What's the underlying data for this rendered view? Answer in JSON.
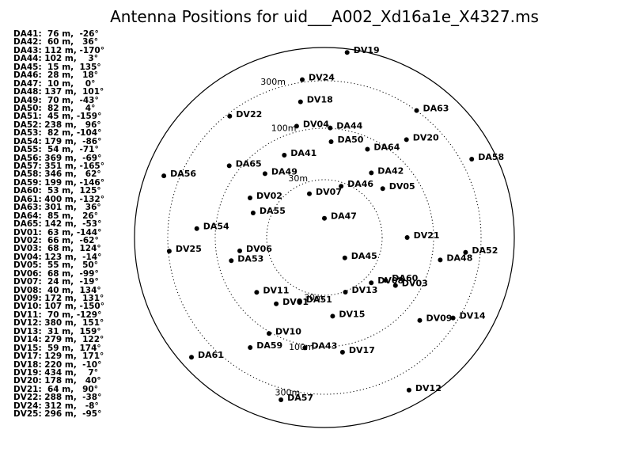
{
  "chart_data": {
    "type": "scatter",
    "projection": "polar",
    "title": "Antenna Positions for uid___A002_Xd16a1e_X4327.ms",
    "rings": [
      {
        "radius_m": 30,
        "label": "30m"
      },
      {
        "radius_m": 100,
        "label": "100m"
      },
      {
        "radius_m": 300,
        "label": "300m"
      }
    ],
    "outer_ring_radius_m": 450,
    "antennas": [
      {
        "name": "DA41",
        "dist_m": 76,
        "angle_deg": -26
      },
      {
        "name": "DA42",
        "dist_m": 60,
        "angle_deg": 36
      },
      {
        "name": "DA43",
        "dist_m": 112,
        "angle_deg": -170
      },
      {
        "name": "DA44",
        "dist_m": 102,
        "angle_deg": 3
      },
      {
        "name": "DA45",
        "dist_m": 15,
        "angle_deg": 135
      },
      {
        "name": "DA46",
        "dist_m": 28,
        "angle_deg": 18
      },
      {
        "name": "DA47",
        "dist_m": 10,
        "angle_deg": 0
      },
      {
        "name": "DA48",
        "dist_m": 137,
        "angle_deg": 101
      },
      {
        "name": "DA49",
        "dist_m": 70,
        "angle_deg": -43
      },
      {
        "name": "DA50",
        "dist_m": 82,
        "angle_deg": 4
      },
      {
        "name": "DA51",
        "dist_m": 45,
        "angle_deg": -159
      },
      {
        "name": "DA52",
        "dist_m": 238,
        "angle_deg": 96
      },
      {
        "name": "DA53",
        "dist_m": 82,
        "angle_deg": -104
      },
      {
        "name": "DA54",
        "dist_m": 179,
        "angle_deg": -86
      },
      {
        "name": "DA55",
        "dist_m": 54,
        "angle_deg": -71
      },
      {
        "name": "DA56",
        "dist_m": 369,
        "angle_deg": -69
      },
      {
        "name": "DA57",
        "dist_m": 351,
        "angle_deg": -165
      },
      {
        "name": "DA58",
        "dist_m": 346,
        "angle_deg": 62
      },
      {
        "name": "DA59",
        "dist_m": 199,
        "angle_deg": -146
      },
      {
        "name": "DA60",
        "dist_m": 53,
        "angle_deg": 125
      },
      {
        "name": "DA61",
        "dist_m": 400,
        "angle_deg": -132
      },
      {
        "name": "DA63",
        "dist_m": 301,
        "angle_deg": 36
      },
      {
        "name": "DA64",
        "dist_m": 85,
        "angle_deg": 26
      },
      {
        "name": "DA65",
        "dist_m": 142,
        "angle_deg": -53
      },
      {
        "name": "DV01",
        "dist_m": 63,
        "angle_deg": -144
      },
      {
        "name": "DV02",
        "dist_m": 66,
        "angle_deg": -62
      },
      {
        "name": "DV03",
        "dist_m": 68,
        "angle_deg": 124
      },
      {
        "name": "DV04",
        "dist_m": 123,
        "angle_deg": -14
      },
      {
        "name": "DV05",
        "dist_m": 55,
        "angle_deg": 50
      },
      {
        "name": "DV06",
        "dist_m": 68,
        "angle_deg": -99
      },
      {
        "name": "DV07",
        "dist_m": 24,
        "angle_deg": -19
      },
      {
        "name": "DV08",
        "dist_m": 40,
        "angle_deg": 134
      },
      {
        "name": "DV09",
        "dist_m": 172,
        "angle_deg": 131
      },
      {
        "name": "DV10",
        "dist_m": 107,
        "angle_deg": -150
      },
      {
        "name": "DV11",
        "dist_m": 70,
        "angle_deg": -129
      },
      {
        "name": "DV12",
        "dist_m": 380,
        "angle_deg": 151
      },
      {
        "name": "DV13",
        "dist_m": 31,
        "angle_deg": 159
      },
      {
        "name": "DV14",
        "dist_m": 279,
        "angle_deg": 122
      },
      {
        "name": "DV15",
        "dist_m": 59,
        "angle_deg": 174
      },
      {
        "name": "DV17",
        "dist_m": 129,
        "angle_deg": 171
      },
      {
        "name": "DV18",
        "dist_m": 220,
        "angle_deg": -10
      },
      {
        "name": "DV19",
        "dist_m": 434,
        "angle_deg": 7
      },
      {
        "name": "DV20",
        "dist_m": 178,
        "angle_deg": 40
      },
      {
        "name": "DV21",
        "dist_m": 64,
        "angle_deg": 90
      },
      {
        "name": "DV22",
        "dist_m": 288,
        "angle_deg": -38
      },
      {
        "name": "DV24",
        "dist_m": 312,
        "angle_deg": -8
      },
      {
        "name": "DV25",
        "dist_m": 296,
        "angle_deg": -95
      }
    ]
  }
}
